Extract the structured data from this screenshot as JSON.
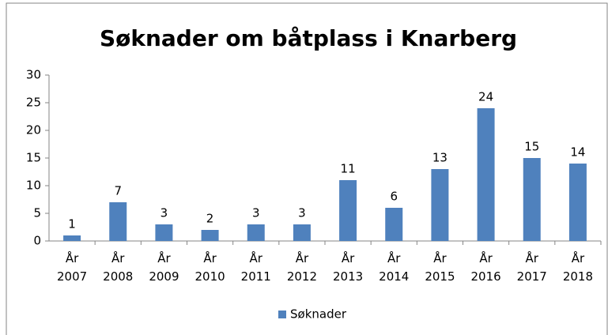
{
  "chart_data": {
    "type": "bar",
    "title": "Søknader om båtplass i Knarberg",
    "categories": [
      "År 2007",
      "År 2008",
      "År 2009",
      "År 2010",
      "År 2011",
      "År 2012",
      "År 2013",
      "År 2014",
      "År 2015",
      "År 2016",
      "År 2017",
      "År 2018"
    ],
    "series": [
      {
        "name": "Søknader",
        "color": "#4f81bd",
        "values": [
          1,
          7,
          3,
          2,
          3,
          3,
          11,
          6,
          13,
          24,
          15,
          14
        ]
      }
    ],
    "ylim": [
      0,
      30
    ],
    "yticks": [
      0,
      5,
      10,
      15,
      20,
      25,
      30
    ],
    "grid": false,
    "legend": "bottom"
  }
}
